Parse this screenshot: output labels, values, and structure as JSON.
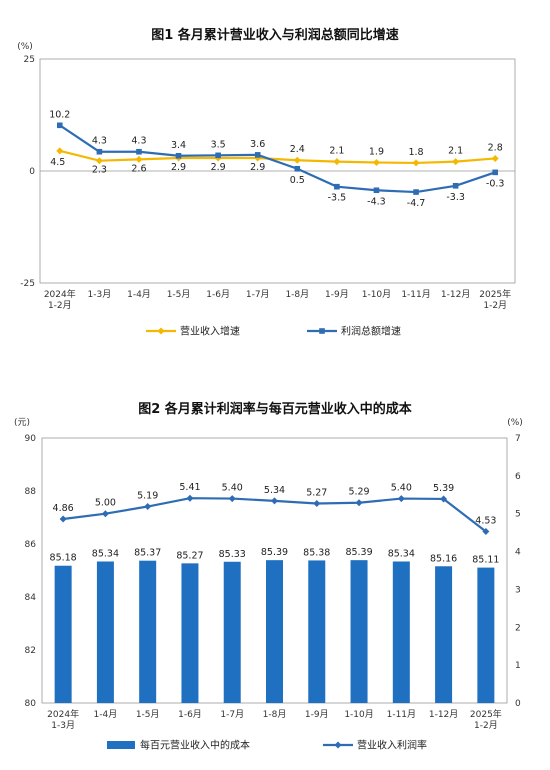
{
  "charts": [
    {
      "title": "图1  各月累计营业收入与利润总额同比增速",
      "y_unit": "(%)"
    },
    {
      "title": "图2  各月累计利润率与每百元营业收入中的成本",
      "y_unit_left": "(元)",
      "y_unit_right": "(%)"
    }
  ],
  "chart_data": [
    {
      "type": "line",
      "title": "图1  各月累计营业收入与利润总额同比增速",
      "ylabel": "(%)",
      "ylim": [
        -25,
        25
      ],
      "yticks": [
        "25",
        "0",
        "-25"
      ],
      "categories": [
        "2024年\n1-2月",
        "1-3月",
        "1-4月",
        "1-5月",
        "1-6月",
        "1-7月",
        "1-8月",
        "1-9月",
        "1-10月",
        "1-11月",
        "1-12月",
        "2025年\n1-2月"
      ],
      "series": [
        {
          "name": "营业收入增速",
          "color": "#F5B800",
          "values": [
            4.5,
            2.3,
            2.6,
            2.9,
            2.9,
            2.9,
            2.4,
            2.1,
            1.9,
            1.8,
            2.1,
            2.8
          ],
          "labels": [
            "4.5",
            "2.3",
            "2.6",
            "2.9",
            "2.9",
            "2.9",
            "2.4",
            "2.1",
            "1.9",
            "1.8",
            "2.1",
            "2.8"
          ]
        },
        {
          "name": "利润总额增速",
          "color": "#2E6DB4",
          "values": [
            10.2,
            4.3,
            4.3,
            3.4,
            3.5,
            3.6,
            0.5,
            -3.5,
            -4.3,
            -4.7,
            -3.3,
            -0.3
          ],
          "labels": [
            "10.2",
            "4.3",
            "4.3",
            "3.4",
            "3.5",
            "3.6",
            "0.5",
            "-3.5",
            "-4.3",
            "-4.7",
            "-3.3",
            "-0.3"
          ]
        }
      ],
      "grid": false,
      "legend": "bottom"
    },
    {
      "type": "bar",
      "title": "图2  各月累计利润率与每百元营业收入中的成本",
      "ylabel": "(元)",
      "ylabel_right": "(%)",
      "ylim": [
        80,
        90
      ],
      "ylim_right": [
        0,
        7
      ],
      "yticks": [
        "80",
        "82",
        "84",
        "86",
        "88",
        "90"
      ],
      "yticks_right": [
        "0",
        "1",
        "2",
        "3",
        "4",
        "5",
        "6",
        "7"
      ],
      "categories": [
        "2024年\n1-3月",
        "1-4月",
        "1-5月",
        "1-6月",
        "1-7月",
        "1-8月",
        "1-9月",
        "1-10月",
        "1-11月",
        "1-12月",
        "2025年\n1-2月"
      ],
      "series": [
        {
          "name": "每百元营业收入中的成本",
          "type": "bar",
          "axis": "left",
          "color": "#1F70C1",
          "values": [
            85.18,
            85.34,
            85.37,
            85.27,
            85.33,
            85.39,
            85.38,
            85.39,
            85.34,
            85.16,
            85.11
          ],
          "labels": [
            "85.18",
            "85.34",
            "85.37",
            "85.27",
            "85.33",
            "85.39",
            "85.38",
            "85.39",
            "85.34",
            "85.16",
            "85.11"
          ]
        },
        {
          "name": "营业收入利润率",
          "type": "line",
          "axis": "right",
          "color": "#2E6DB4",
          "values": [
            4.86,
            5.0,
            5.19,
            5.41,
            5.4,
            5.34,
            5.27,
            5.29,
            5.4,
            5.39,
            4.53
          ],
          "labels": [
            "4.86",
            "5.00",
            "5.19",
            "5.41",
            "5.40",
            "5.34",
            "5.27",
            "5.29",
            "5.40",
            "5.39",
            "4.53"
          ]
        }
      ],
      "grid": false,
      "legend": "bottom"
    }
  ]
}
